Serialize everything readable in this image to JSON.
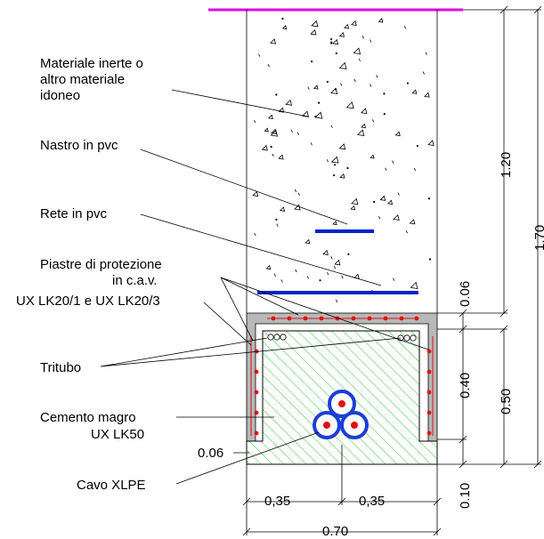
{
  "labels": {
    "materiale_1": "Materiale inerte o",
    "materiale_2": "altro materiale",
    "materiale_3": "idoneo",
    "nastro": "Nastro in pvc",
    "rete": "Rete in pvc",
    "piastre_1": "Piastre di protezione",
    "piastre_2": "in c.a.v.",
    "piastre_3": "UX LK20/1 e UX LK20/3",
    "tritubo": "Tritubo",
    "cemento_1": "Cemento magro",
    "cemento_2": "UX LK50",
    "cavo": "Cavo XLPE"
  },
  "dimensions": {
    "d_1_20": "1.20",
    "d_1_70": "1.70",
    "d_0_06_top": "0.06",
    "d_0_40": "0.40",
    "d_0_50": "0.50",
    "d_0_10": "0.10",
    "d_0_06_left": "0.06",
    "d_0_35_left": "0,35",
    "d_0_35_right": "0,35",
    "d_0_70": "0.70"
  },
  "colors": {
    "surface_line": "#e000e0",
    "pvc_tape": "#0022cc",
    "rebar": "#e01010",
    "hatch": "#33cc33",
    "slab": "#b8b8b8",
    "cable_ring": "#1a3fd6"
  }
}
